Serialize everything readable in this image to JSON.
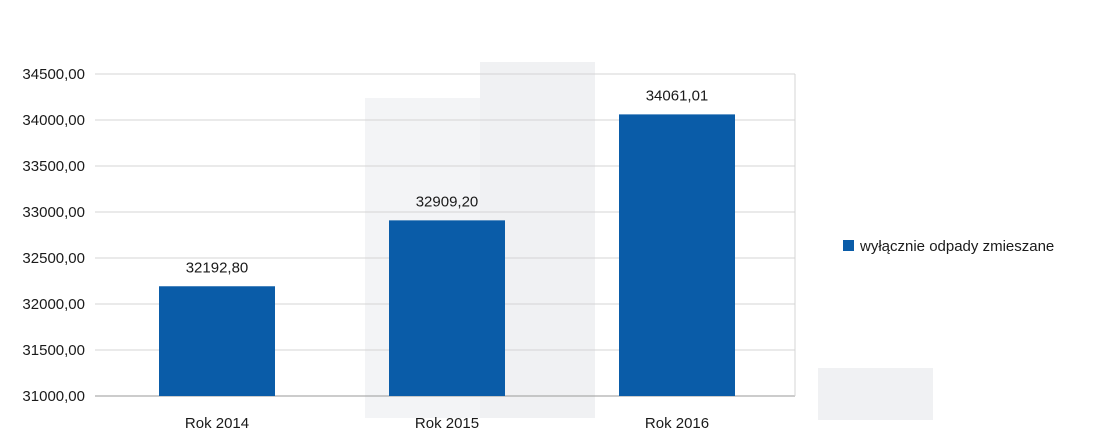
{
  "chart_data": {
    "type": "bar",
    "categories": [
      "Rok 2014",
      "Rok 2015",
      "Rok 2016"
    ],
    "series": [
      {
        "name": "wyłącznie odpady zmieszane",
        "color": "#0a5ca8",
        "values": [
          32192.8,
          32909.2,
          34061.01
        ],
        "labels": [
          "32192,80",
          "32909,20",
          "34061,01"
        ]
      }
    ],
    "y_ticks": [
      "31000,00",
      "31500,00",
      "32000,00",
      "32500,00",
      "33000,00",
      "33500,00",
      "34000,00",
      "34500,00"
    ],
    "ylim": [
      31000,
      34500
    ],
    "grid": true,
    "legend_position": "right"
  }
}
